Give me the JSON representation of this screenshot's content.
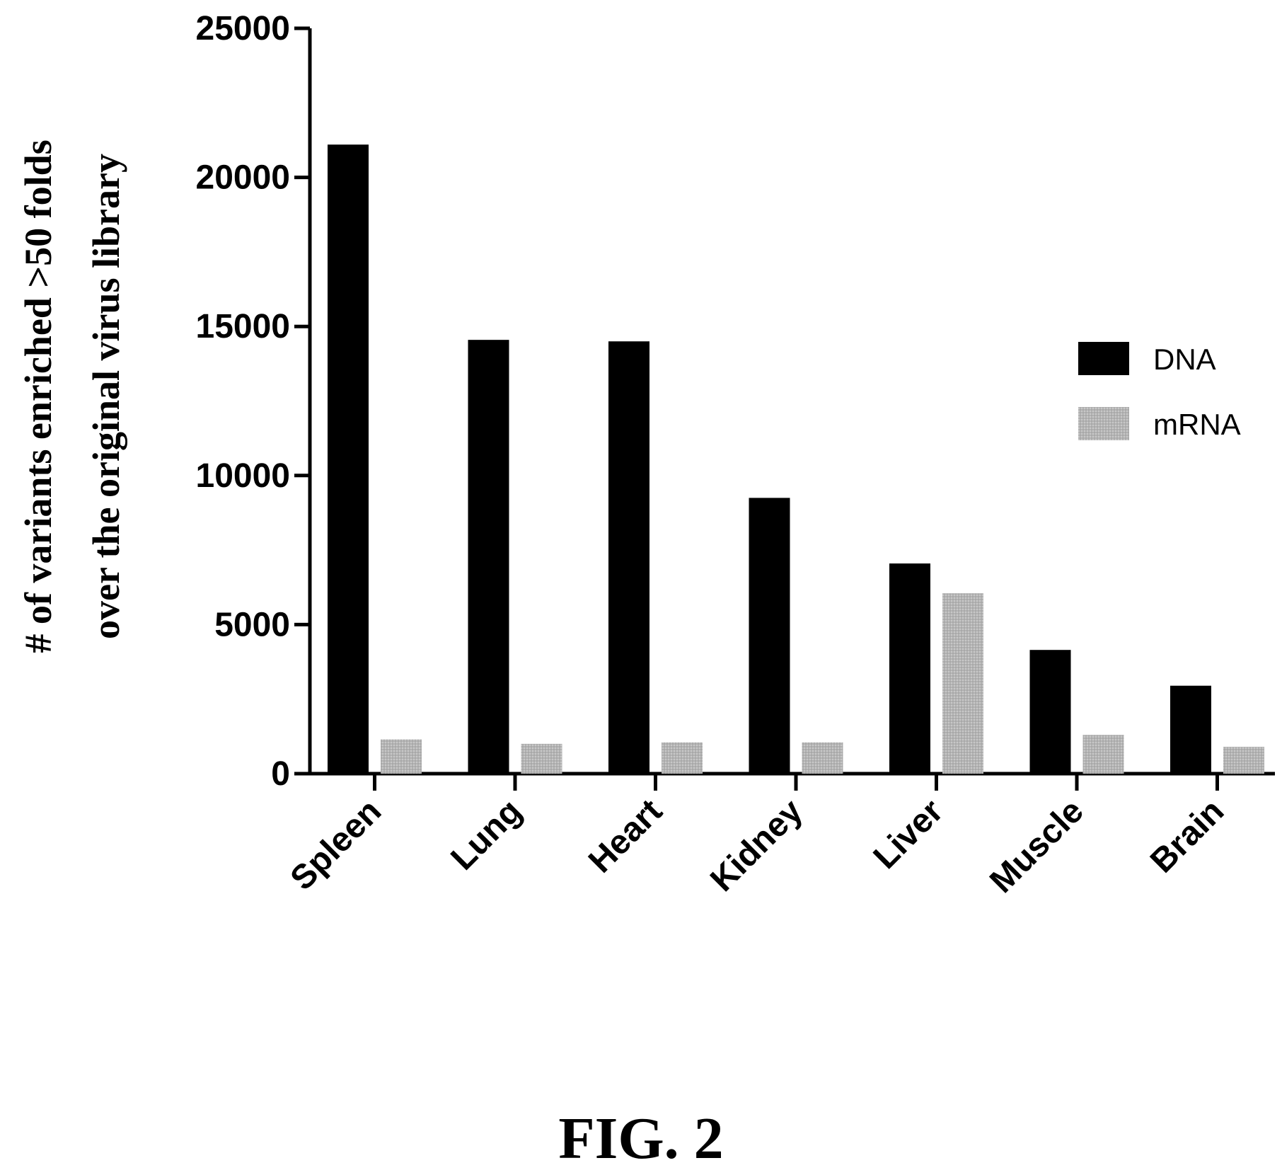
{
  "chart_data": {
    "type": "bar",
    "ylabel_line1": "# of variants enriched >50 folds",
    "ylabel_line2": "over the original virus library",
    "categories": [
      "Spleen",
      "Lung",
      "Heart",
      "Kidney",
      "Liver",
      "Muscle",
      "Brain"
    ],
    "series": [
      {
        "name": "DNA",
        "color": "#000000",
        "values": [
          21100,
          14550,
          14500,
          9250,
          7050,
          4150,
          2950
        ]
      },
      {
        "name": "mRNA",
        "color": "#b8b8b8",
        "values": [
          1150,
          1000,
          1050,
          1050,
          6050,
          1300,
          900
        ]
      }
    ],
    "ylim": [
      0,
      25000
    ],
    "yticks": [
      "0",
      "5000",
      "10000",
      "15000",
      "20000",
      "25000"
    ],
    "legend_position": "right",
    "grid": false
  },
  "caption": "FIG. 2"
}
